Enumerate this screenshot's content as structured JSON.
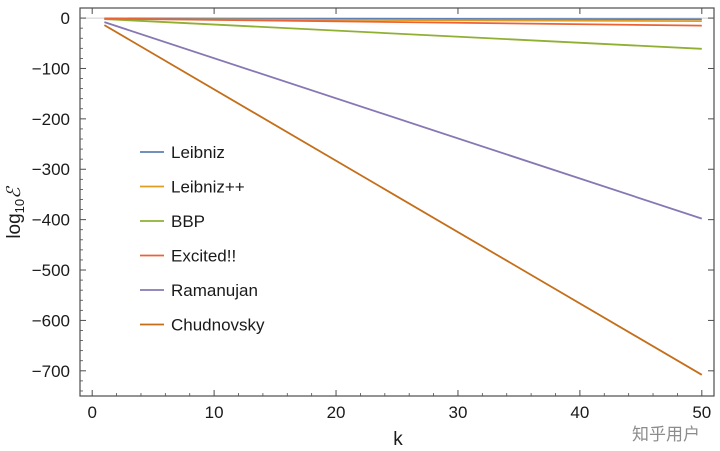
{
  "chart_data": {
    "type": "line",
    "title": "",
    "xlabel": "k",
    "ylabel": "log",
    "ylabel_subscript": "10",
    "ylabel_symbol": "ℰ",
    "xlim": [
      -1,
      51
    ],
    "ylim": [
      -750,
      20
    ],
    "x_ticks": [
      0,
      10,
      20,
      30,
      40,
      50
    ],
    "x_tick_labels": [
      "0",
      "10",
      "20",
      "30",
      "40",
      "50"
    ],
    "y_ticks": [
      0,
      -100,
      -200,
      -300,
      -400,
      -500,
      -600,
      -700
    ],
    "y_tick_labels": [
      "0",
      "−100",
      "−200",
      "−300",
      "−400",
      "−500",
      "−600",
      "−700"
    ],
    "legend_position": "center-left",
    "grid": false,
    "series": [
      {
        "name": "Leibniz",
        "color": "#5e81b5",
        "x": [
          1,
          50
        ],
        "y": [
          -0.7,
          -2.3
        ]
      },
      {
        "name": "Leibniz++",
        "color": "#e19c24",
        "x": [
          1,
          50
        ],
        "y": [
          -2,
          -6
        ]
      },
      {
        "name": "BBP",
        "color": "#8fb032",
        "x": [
          1,
          50
        ],
        "y": [
          -2,
          -61
        ]
      },
      {
        "name": "Excited!!",
        "color": "#eb6235",
        "x": [
          1,
          50
        ],
        "y": [
          -1,
          -15
        ]
      },
      {
        "name": "Ramanujan",
        "color": "#8778b3",
        "x": [
          1,
          50
        ],
        "y": [
          -8,
          -398
        ]
      },
      {
        "name": "Chudnovsky",
        "color": "#c56e1a",
        "x": [
          1,
          50
        ],
        "y": [
          -14,
          -708
        ]
      }
    ]
  },
  "watermark": "知乎用户"
}
